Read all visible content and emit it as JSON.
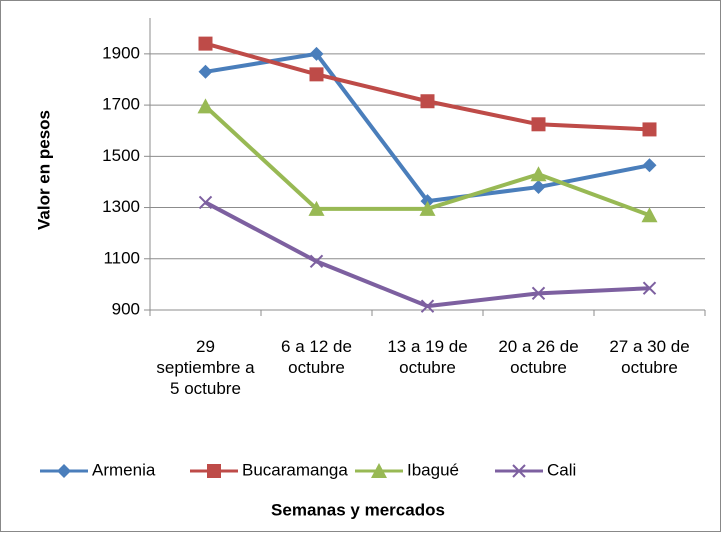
{
  "chart_data": {
    "type": "line",
    "x_label": "Semanas y mercados",
    "y_label": "Valor en pesos",
    "categories": [
      "29 septiembre a 5 octubre",
      "6 a 12 de octubre",
      "13 a 19 de octubre",
      "20 a 26 de octubre",
      "27 a 30 de octubre"
    ],
    "series": [
      {
        "name": "Armenia",
        "color": "#4a7ebb",
        "marker": "diamond",
        "values": [
          1830,
          1900,
          1325,
          1380,
          1465
        ]
      },
      {
        "name": "Bucaramanga",
        "color": "#be4b48",
        "marker": "square",
        "values": [
          1940,
          1820,
          1715,
          1625,
          1605
        ]
      },
      {
        "name": "Ibagué",
        "color": "#98b954",
        "marker": "triangle",
        "values": [
          1695,
          1295,
          1295,
          1430,
          1270
        ]
      },
      {
        "name": "Cali",
        "color": "#7d60a0",
        "marker": "x",
        "values": [
          1320,
          1090,
          915,
          965,
          985
        ]
      }
    ],
    "ylim": [
      900,
      2040
    ],
    "yticks": [
      900,
      1100,
      1300,
      1500,
      1700,
      1900
    ],
    "grid": true,
    "legend": "bottom"
  }
}
